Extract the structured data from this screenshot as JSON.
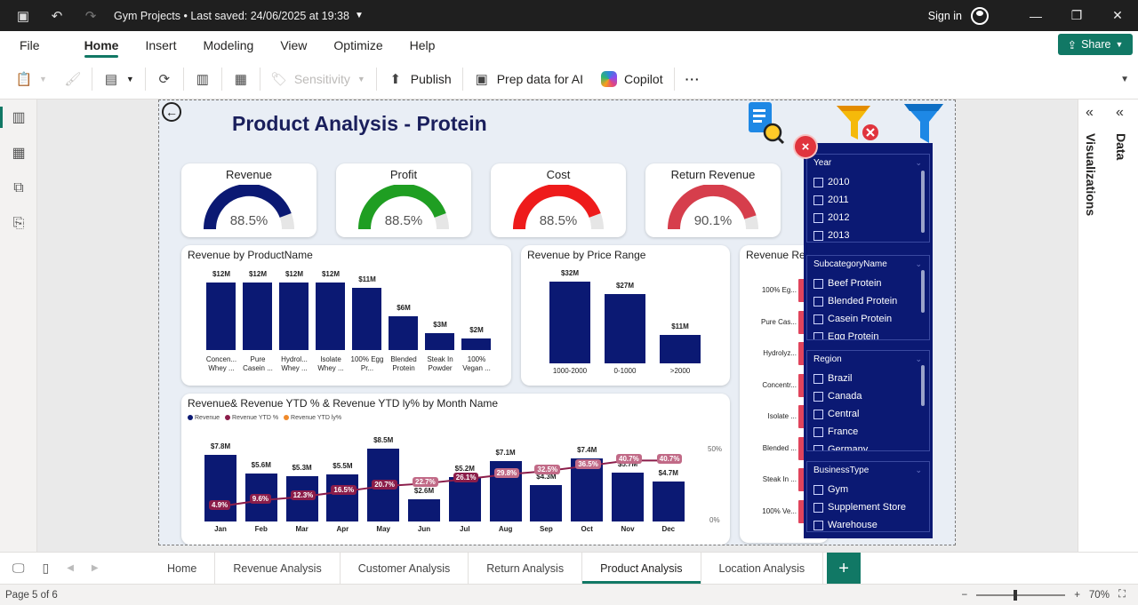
{
  "titlebar": {
    "title": "Gym Projects • Last saved: 24/06/2025 at 19:38",
    "signin": "Sign in"
  },
  "ribbon": {
    "tabs": [
      "File",
      "Home",
      "Insert",
      "Modeling",
      "View",
      "Optimize",
      "Help"
    ],
    "share": "Share",
    "tools": {
      "sensitivity": "Sensitivity",
      "publish": "Publish",
      "prep": "Prep data for AI",
      "copilot": "Copilot",
      "more": "···"
    }
  },
  "report": {
    "title": "Product Analysis - Protein",
    "kpis": [
      {
        "title": "Revenue",
        "value": "88.5%",
        "color": "#0b1973",
        "fraction": 0.885
      },
      {
        "title": "Profit",
        "value": "88.5%",
        "color": "#1f9e22",
        "fraction": 0.885
      },
      {
        "title": "Cost",
        "value": "88.5%",
        "color": "#ee1b1b",
        "fraction": 0.885
      },
      {
        "title": "Return Revenue",
        "value": "90.1%",
        "color": "#d63e4c",
        "fraction": 0.901
      }
    ]
  },
  "chart_data": [
    {
      "type": "bar",
      "title": "Revenue by ProductName",
      "categories": [
        "Concen... Whey ...",
        "Pure Casein ...",
        "Hydrol... Whey ...",
        "Isolate Whey ...",
        "100% Egg Pr...",
        "Blended Protein",
        "Steak In Powder",
        "100% Vegan ..."
      ],
      "values": [
        12,
        12,
        12,
        12,
        11,
        6,
        3,
        2
      ],
      "labels": [
        "$12M",
        "$12M",
        "$12M",
        "$12M",
        "$11M",
        "$6M",
        "$3M",
        "$2M"
      ]
    },
    {
      "type": "bar",
      "title": "Revenue by Price Range",
      "categories": [
        "1000-2000",
        "0-1000",
        ">2000"
      ],
      "values": [
        32,
        27,
        11
      ],
      "labels": [
        "$32M",
        "$27M",
        "$11M"
      ]
    },
    {
      "type": "bar",
      "title": "Revenue& Revenue YTD % & Revenue YTD ly% by Month Name",
      "legend": [
        "Revenue",
        "Revenue YTD %",
        "Revenue YTD ly%"
      ],
      "categories": [
        "Jan",
        "Feb",
        "Mar",
        "Apr",
        "May",
        "Jun",
        "Jul",
        "Aug",
        "Sep",
        "Oct",
        "Nov",
        "Dec"
      ],
      "revenue": [
        7.8,
        5.6,
        5.3,
        5.5,
        8.5,
        2.6,
        5.2,
        7.1,
        4.3,
        7.4,
        5.7,
        4.7
      ],
      "revenue_labels": [
        "$7.8M",
        "$5.6M",
        "$5.3M",
        "$5.5M",
        "$8.5M",
        "$2.6M",
        "$5.2M",
        "$7.1M",
        "$4.3M",
        "$7.4M",
        "$5.7M",
        "$4.7M"
      ],
      "ytd_pct_labels": [
        "4.9%",
        "9.6%",
        "12.3%",
        "16.5%",
        "20.7%",
        "22.7%",
        "26.1%",
        "29.8%",
        "32.5%",
        "36.5%",
        "40.7%",
        "40.7%"
      ],
      "y2_ticks": [
        "50%",
        "0%"
      ]
    },
    {
      "type": "bar",
      "title": "Revenue Re",
      "categories": [
        "100% Eg...",
        "Pure Cas...",
        "Hydrolyz...",
        "Concentr...",
        "Isolate ...",
        "Blended ...",
        "Steak In ...",
        "100% Ve..."
      ]
    }
  ],
  "filters": [
    {
      "title": "Year",
      "items": [
        "2010",
        "2011",
        "2012",
        "2013"
      ]
    },
    {
      "title": "SubcategoryName",
      "items": [
        "Beef Protein",
        "Blended Protein",
        "Casein Protein",
        "Egg Protein"
      ]
    },
    {
      "title": "Region",
      "items": [
        "Brazil",
        "Canada",
        "Central",
        "France",
        "Germany"
      ]
    },
    {
      "title": "BusinessType",
      "items": [
        "Gym",
        "Supplement Store",
        "Warehouse"
      ]
    }
  ],
  "panes": {
    "visualizations": "Visualizations",
    "data": "Data"
  },
  "pages": [
    "Home",
    "Revenue Analysis",
    "Customer Analysis",
    "Return Analysis",
    "Product Analysis",
    "Location Analysis"
  ],
  "active_page": "Product Analysis",
  "status": {
    "page": "Page 5 of 6",
    "zoom": "70%"
  }
}
